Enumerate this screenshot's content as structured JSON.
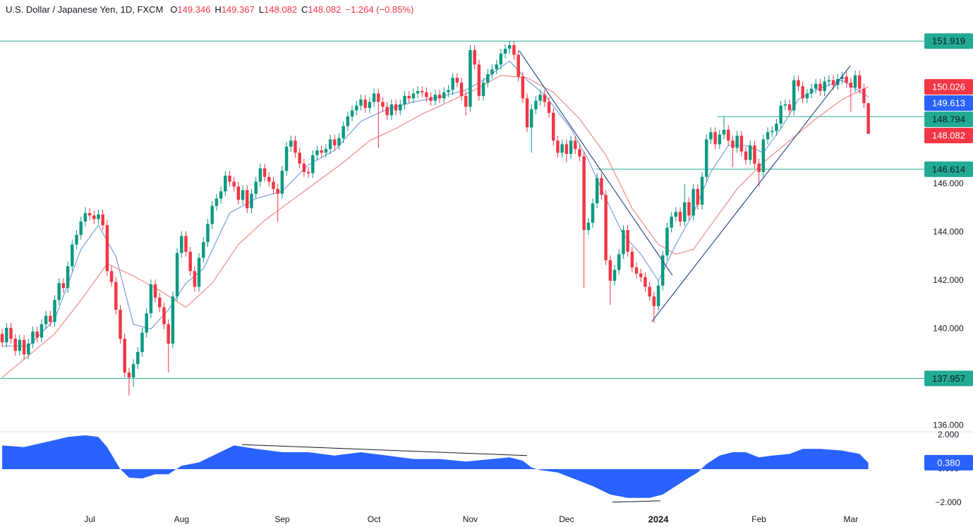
{
  "chart_data": {
    "type": "candlestick",
    "title": "U.S. Dollar / Japanese Yen, 1D, FXCM",
    "quote_keys": [
      "O",
      "H",
      "L",
      "C"
    ],
    "change": "−1.264 (−0.85%)",
    "up_color": "#089981",
    "down_color": "#f23645",
    "xlim": [
      -0.5,
      210.8
    ],
    "xticks": [
      {
        "value": 20,
        "label": "Jul"
      },
      {
        "value": 41,
        "label": "Aug"
      },
      {
        "value": 64,
        "label": "Sep"
      },
      {
        "value": 85,
        "label": "Oct"
      },
      {
        "value": 107,
        "label": "Nov"
      },
      {
        "value": 129,
        "label": "Dec"
      },
      {
        "value": 150,
        "label": "2024",
        "bold": true
      },
      {
        "value": 173,
        "label": "Feb"
      },
      {
        "value": 194,
        "label": "Mar"
      }
    ],
    "ylim": [
      135.75,
      153.62
    ],
    "yticks": [
      {
        "value": 146,
        "label": "146.000"
      },
      {
        "value": 144,
        "label": "144.000"
      },
      {
        "value": 142,
        "label": "142.000"
      },
      {
        "value": 140,
        "label": "140.000"
      },
      {
        "value": 138,
        "label": "138.000"
      },
      {
        "value": 136,
        "label": "136.000"
      }
    ],
    "open": [
      139.8,
      139.45,
      140.05,
      139.6,
      139.1,
      139.55,
      138.95,
      139.4,
      139.9,
      139.65,
      140.2,
      140.55,
      140.3,
      141.2,
      141.9,
      141.7,
      142.6,
      143.5,
      143.9,
      144.45,
      144.8,
      144.7,
      144.55,
      144.75,
      144.3,
      142.4,
      141.95,
      140.8,
      139.6,
      138.2,
      138.0,
      138.55,
      139.05,
      139.85,
      140.65,
      141.85,
      141.3,
      140.9,
      140.2,
      139.4,
      141.35,
      143.15,
      143.85,
      143.2,
      142.4,
      141.75,
      142.95,
      143.6,
      144.35,
      145.1,
      145.4,
      145.7,
      146.35,
      146.1,
      145.9,
      145.35,
      145.75,
      145.0,
      145.6,
      146.1,
      146.65,
      146.3,
      146.1,
      145.8,
      145.6,
      146.55,
      147.55,
      147.8,
      147.3,
      146.85,
      146.5,
      146.45,
      147.2,
      147.4,
      147.3,
      147.45,
      147.85,
      147.6,
      147.9,
      148.4,
      148.8,
      149.05,
      149.25,
      149.5,
      149.15,
      149.4,
      149.75,
      149.4,
      149.2,
      148.85,
      149.3,
      149.05,
      149.3,
      149.65,
      149.55,
      149.75,
      149.85,
      149.8,
      149.6,
      149.45,
      149.7,
      149.55,
      149.8,
      149.9,
      150.4,
      150.2,
      149.65,
      149.2,
      151.55,
      150.95,
      149.65,
      150.2,
      150.55,
      150.75,
      150.95,
      151.4,
      151.6,
      151.75,
      151.35,
      150.45,
      149.55,
      148.35,
      149.1,
      149.45,
      149.7,
      149.4,
      148.95,
      147.8,
      147.3,
      147.65,
      147.25,
      147.8,
      147.45,
      147.15,
      144.1,
      144.4,
      145.2,
      146.25,
      145.55,
      142.85,
      142.0,
      142.45,
      143.1,
      144.1,
      143.2,
      142.55,
      142.3,
      142.15,
      141.75,
      141.35,
      140.95,
      141.8,
      143.05,
      144.2,
      144.65,
      144.85,
      144.45,
      145.25,
      144.7,
      145.8,
      145.15,
      146.3,
      147.85,
      148.15,
      147.65,
      148.05,
      148.25,
      147.8,
      147.5,
      148.0,
      147.35,
      147.0,
      147.6,
      146.85,
      146.5,
      147.85,
      148.15,
      148.2,
      148.5,
      149.25,
      149.3,
      149.05,
      150.3,
      150.05,
      149.55,
      149.75,
      149.95,
      150.15,
      149.85,
      150.25,
      150.3,
      150.1,
      150.35,
      150.45,
      150.2,
      150.0,
      150.5,
      149.95,
      149.346
    ],
    "high": [
      140.0,
      140.25,
      140.25,
      139.8,
      139.75,
      139.75,
      139.6,
      140.1,
      140.1,
      140.4,
      140.75,
      140.75,
      141.4,
      142.1,
      142.1,
      142.8,
      143.7,
      144.1,
      144.65,
      145.05,
      145.0,
      144.9,
      144.95,
      144.95,
      144.5,
      142.6,
      142.15,
      141.0,
      139.8,
      138.4,
      138.75,
      139.25,
      140.05,
      140.85,
      142.05,
      142.05,
      141.5,
      141.1,
      140.4,
      141.55,
      143.35,
      144.05,
      144.05,
      143.4,
      142.6,
      143.15,
      143.8,
      144.55,
      145.3,
      145.6,
      145.9,
      146.55,
      146.55,
      146.3,
      146.1,
      145.95,
      145.95,
      145.8,
      146.3,
      146.85,
      146.85,
      146.5,
      146.3,
      146.0,
      146.75,
      147.75,
      148.0,
      148.0,
      147.5,
      147.05,
      146.7,
      147.4,
      147.6,
      147.6,
      147.65,
      148.05,
      148.05,
      148.1,
      148.6,
      149.0,
      149.25,
      149.45,
      149.7,
      149.7,
      149.6,
      149.95,
      149.95,
      149.6,
      149.4,
      149.5,
      149.5,
      149.5,
      149.85,
      149.85,
      149.95,
      150.05,
      150.05,
      150.0,
      149.8,
      149.9,
      149.9,
      150.0,
      150.1,
      150.6,
      150.6,
      150.4,
      149.85,
      151.75,
      151.75,
      151.15,
      150.4,
      150.75,
      150.95,
      151.15,
      151.6,
      151.8,
      151.919,
      151.9,
      151.55,
      150.65,
      149.75,
      149.3,
      149.65,
      149.9,
      149.9,
      149.6,
      149.15,
      148.0,
      147.85,
      147.85,
      148.0,
      148.0,
      147.65,
      147.35,
      144.6,
      145.4,
      146.45,
      146.45,
      145.75,
      143.05,
      142.65,
      143.3,
      144.3,
      144.3,
      143.4,
      142.75,
      142.5,
      142.35,
      141.95,
      141.55,
      142.0,
      143.25,
      144.4,
      144.85,
      145.05,
      145.05,
      146.0,
      145.45,
      146.0,
      146.0,
      146.5,
      148.05,
      148.35,
      148.35,
      148.25,
      148.794,
      148.45,
      148.0,
      148.2,
      148.2,
      147.55,
      147.8,
      147.8,
      147.05,
      148.05,
      148.35,
      148.4,
      148.7,
      149.45,
      149.5,
      149.5,
      150.5,
      150.5,
      150.25,
      149.95,
      150.15,
      150.35,
      150.35,
      150.45,
      150.5,
      150.5,
      150.55,
      150.65,
      150.65,
      150.4,
      150.7,
      150.7,
      150.15,
      149.367
    ],
    "low": [
      139.25,
      139.25,
      139.4,
      138.9,
      138.9,
      138.75,
      138.75,
      139.2,
      139.45,
      139.45,
      140.0,
      140.1,
      140.1,
      141.0,
      141.5,
      141.5,
      142.4,
      143.3,
      143.7,
      144.25,
      144.5,
      144.35,
      144.35,
      144.1,
      142.2,
      141.75,
      140.6,
      139.4,
      138.0,
      137.25,
      137.6,
      138.35,
      138.85,
      139.65,
      140.45,
      141.1,
      140.7,
      140.0,
      138.2,
      139.2,
      141.15,
      142.95,
      143.0,
      142.2,
      141.55,
      141.55,
      142.75,
      143.4,
      144.15,
      144.9,
      145.2,
      145.5,
      145.9,
      145.7,
      145.15,
      145.15,
      144.8,
      144.8,
      145.4,
      145.9,
      146.1,
      145.9,
      145.6,
      144.45,
      145.4,
      146.35,
      147.35,
      147.1,
      146.65,
      146.3,
      146.25,
      146.25,
      147.0,
      147.1,
      147.1,
      147.25,
      147.4,
      147.4,
      147.7,
      148.2,
      148.6,
      148.85,
      149.05,
      148.95,
      148.95,
      149.2,
      147.5,
      149.0,
      148.65,
      148.65,
      148.85,
      148.85,
      149.1,
      149.35,
      149.35,
      149.55,
      149.6,
      149.4,
      149.25,
      149.25,
      149.35,
      149.35,
      149.6,
      149.7,
      150.0,
      149.45,
      148.85,
      149.0,
      150.75,
      149.45,
      149.45,
      150.0,
      150.35,
      150.55,
      150.75,
      151.2,
      151.4,
      151.15,
      150.25,
      149.35,
      148.15,
      147.3,
      148.9,
      149.25,
      149.2,
      148.75,
      147.6,
      147.1,
      147.1,
      146.9,
      147.05,
      147.25,
      146.95,
      141.7,
      143.9,
      144.2,
      145.0,
      145.35,
      142.65,
      141.0,
      141.8,
      142.25,
      142.9,
      143.0,
      142.35,
      142.1,
      141.95,
      141.55,
      141.15,
      140.25,
      140.75,
      141.6,
      142.85,
      144.0,
      144.45,
      144.25,
      144.25,
      144.5,
      144.5,
      144.95,
      144.95,
      146.1,
      147.65,
      147.45,
      147.45,
      147.85,
      147.6,
      146.7,
      147.3,
      147.15,
      146.8,
      146.8,
      146.65,
      145.9,
      146.3,
      147.65,
      147.95,
      148.0,
      148.3,
      149.05,
      148.85,
      148.85,
      149.85,
      149.35,
      149.35,
      149.55,
      149.75,
      149.65,
      149.65,
      150.05,
      149.9,
      149.9,
      150.15,
      150.0,
      149.0,
      149.8,
      149.75,
      149.15,
      148.082
    ],
    "close": [
      139.45,
      140.05,
      139.6,
      139.1,
      139.55,
      138.95,
      139.4,
      139.9,
      139.65,
      140.2,
      140.55,
      140.3,
      141.2,
      141.9,
      141.7,
      142.6,
      143.5,
      143.9,
      144.45,
      144.8,
      144.7,
      144.55,
      144.75,
      144.3,
      142.4,
      141.95,
      140.8,
      139.6,
      138.2,
      138.0,
      138.55,
      139.05,
      139.85,
      140.65,
      141.85,
      141.3,
      140.9,
      140.2,
      139.4,
      141.35,
      143.15,
      143.85,
      143.2,
      142.4,
      141.75,
      142.95,
      143.6,
      144.35,
      145.1,
      145.4,
      145.7,
      146.35,
      146.1,
      145.9,
      145.35,
      145.75,
      145.0,
      145.6,
      146.1,
      146.65,
      146.3,
      146.1,
      145.8,
      145.6,
      146.55,
      147.55,
      147.8,
      147.3,
      146.85,
      146.5,
      146.45,
      147.2,
      147.4,
      147.3,
      147.45,
      147.85,
      147.6,
      147.9,
      148.4,
      148.8,
      149.05,
      149.25,
      149.5,
      149.15,
      149.4,
      149.75,
      149.4,
      149.2,
      148.85,
      149.3,
      149.05,
      149.3,
      149.65,
      149.55,
      149.75,
      149.85,
      149.8,
      149.6,
      149.45,
      149.7,
      149.55,
      149.8,
      149.9,
      150.4,
      150.2,
      149.65,
      149.2,
      151.55,
      150.95,
      149.65,
      150.2,
      150.55,
      150.75,
      150.95,
      151.4,
      151.6,
      151.75,
      151.35,
      150.45,
      149.55,
      148.35,
      149.1,
      149.45,
      149.7,
      149.4,
      148.95,
      147.8,
      147.3,
      147.65,
      147.25,
      147.8,
      147.45,
      147.15,
      144.1,
      144.4,
      145.2,
      146.25,
      145.55,
      142.85,
      142.0,
      142.45,
      143.1,
      144.1,
      143.2,
      142.55,
      142.3,
      142.15,
      141.75,
      141.35,
      140.95,
      141.8,
      143.05,
      144.2,
      144.65,
      144.85,
      144.45,
      145.25,
      144.7,
      145.8,
      145.15,
      146.3,
      147.85,
      148.15,
      147.65,
      148.05,
      148.25,
      147.8,
      147.5,
      148.0,
      147.35,
      147.0,
      147.6,
      146.85,
      146.5,
      147.85,
      148.15,
      148.2,
      148.5,
      149.25,
      149.3,
      149.05,
      150.3,
      150.05,
      149.55,
      149.75,
      149.95,
      150.15,
      149.85,
      150.25,
      150.3,
      150.1,
      150.35,
      150.45,
      150.2,
      150.0,
      150.5,
      149.95,
      149.35,
      148.082
    ],
    "overlays": [
      {
        "color": "#7b9fdc",
        "tag_color": "#2962ff",
        "x": [
          0,
          6,
          12,
          18,
          22,
          26,
          30,
          34,
          38,
          42,
          46,
          52,
          58,
          64,
          70,
          76,
          82,
          88,
          94,
          100,
          106,
          110,
          116,
          120,
          124,
          130,
          134,
          138,
          142,
          146,
          150,
          154,
          158,
          162,
          166,
          170,
          174,
          178,
          182,
          186,
          192,
          198
        ],
        "values": [
          139.3,
          139.3,
          140.4,
          143.3,
          144.3,
          143.0,
          140.2,
          140.0,
          140.8,
          141.9,
          142.5,
          144.8,
          145.4,
          145.7,
          146.8,
          147.4,
          148.6,
          149.1,
          149.4,
          149.6,
          149.9,
          150.3,
          151.1,
          150.3,
          149.7,
          148.3,
          147.0,
          145.4,
          143.9,
          143.1,
          142.0,
          143.5,
          144.8,
          146.5,
          147.6,
          147.6,
          147.3,
          148.3,
          149.5,
          149.9,
          150.3,
          149.613
        ]
      },
      {
        "color": "#ef8a8a",
        "tag_color": "#f23645",
        "x": [
          0,
          6,
          12,
          18,
          24,
          30,
          36,
          42,
          48,
          54,
          60,
          66,
          72,
          78,
          84,
          90,
          96,
          102,
          108,
          114,
          120,
          126,
          132,
          138,
          144,
          150,
          154,
          158,
          162,
          168,
          174,
          180,
          186,
          192,
          198
        ],
        "values": [
          138.0,
          138.9,
          139.8,
          141.2,
          142.7,
          142.2,
          141.6,
          140.9,
          141.9,
          143.5,
          144.5,
          145.3,
          146.1,
          146.9,
          147.8,
          148.3,
          148.9,
          149.4,
          149.9,
          150.5,
          150.4,
          149.8,
          148.7,
          147.2,
          145.0,
          143.5,
          143.1,
          143.3,
          144.3,
          145.8,
          146.9,
          147.8,
          148.7,
          149.5,
          150.026
        ]
      }
    ],
    "trendline_color": "#2e4d8f",
    "trendlines": [
      {
        "x": [
          118.2,
          153.2
        ],
        "values": [
          151.52,
          142.23
        ]
      },
      {
        "x": [
          148.5,
          193.9
        ],
        "values": [
          140.31,
          150.9
        ]
      }
    ],
    "level_color": "#22ab94",
    "levels": [
      {
        "value": 151.919
      },
      {
        "value": 148.794,
        "from": 163.5
      },
      {
        "value": 146.614,
        "from": 135.8
      },
      {
        "value": 137.957
      }
    ],
    "oscillator": {
      "type": "area",
      "color": "#2962ff",
      "ylim": [
        -2.375,
        2.208
      ],
      "yticks": [
        {
          "value": 2,
          "label": "2.000"
        },
        {
          "value": 0,
          "label": "0.000"
        },
        {
          "value": -2,
          "label": "−2.000"
        }
      ],
      "x": [
        0,
        5,
        10,
        15,
        19,
        22,
        24,
        27,
        29,
        32,
        35,
        38,
        41,
        45,
        49,
        53,
        58,
        64,
        70,
        76,
        82,
        88,
        94,
        100,
        106,
        112,
        116,
        119,
        121,
        123,
        127,
        131,
        135,
        139,
        143,
        148,
        151,
        154,
        157,
        159,
        161,
        164,
        167,
        170,
        173,
        176,
        180,
        183,
        187,
        192,
        196,
        198
      ],
      "values": [
        1.4,
        1.3,
        1.6,
        1.9,
        2.0,
        1.9,
        1.3,
        0.0,
        -0.5,
        -0.55,
        -0.3,
        -0.3,
        0.2,
        0.4,
        0.9,
        1.4,
        1.2,
        1.0,
        1.0,
        0.8,
        1.0,
        0.8,
        0.6,
        0.6,
        0.45,
        0.6,
        0.7,
        0.5,
        0.1,
        -0.05,
        -0.2,
        -0.6,
        -1.0,
        -1.5,
        -1.7,
        -1.7,
        -1.5,
        -1.0,
        -0.5,
        -0.2,
        0.3,
        0.8,
        1.0,
        1.0,
        0.7,
        0.8,
        0.9,
        1.2,
        1.2,
        1.1,
        0.9,
        0.38
      ],
      "value_label": "0.380",
      "trendline_color": "#131722",
      "trendlines": [
        {
          "x": [
            54.8,
            120
          ],
          "values": [
            1.45,
            0.8
          ]
        },
        {
          "x": [
            139.5,
            150.5
          ],
          "values": [
            -1.95,
            -1.87
          ]
        }
      ]
    }
  }
}
